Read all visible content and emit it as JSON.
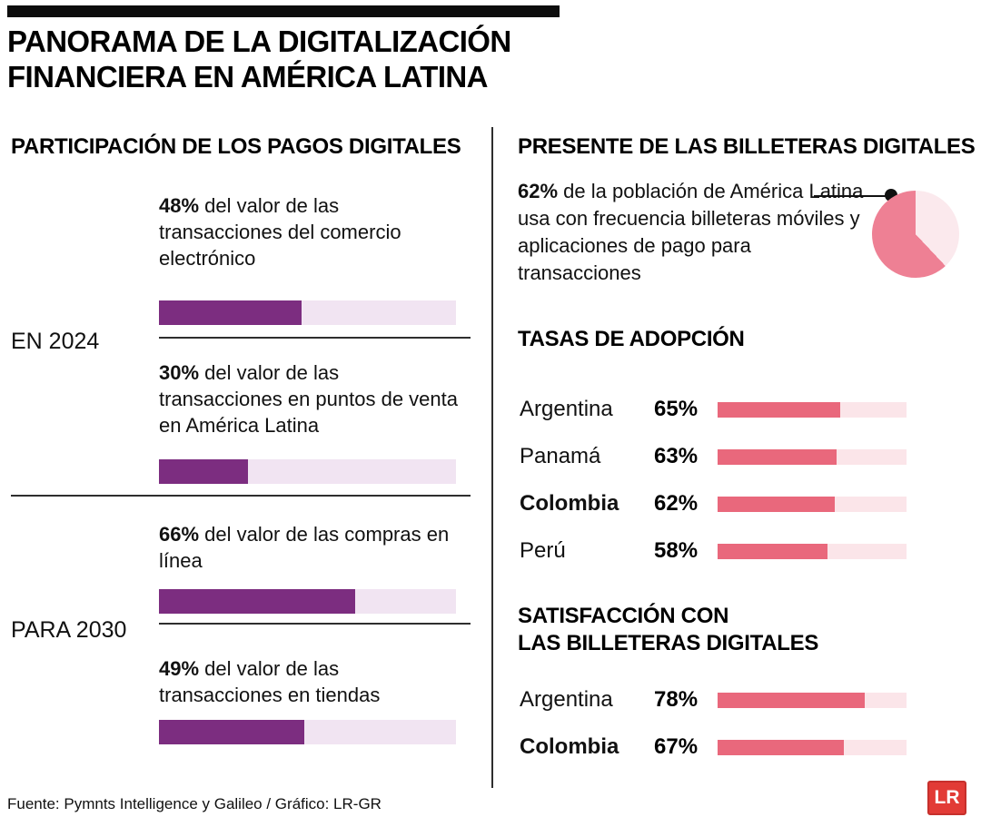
{
  "title": {
    "line1": "PANORAMA DE LA DIGITALIZACIÓN",
    "line2": "FINANCIERA EN AMÉRICA LATINA"
  },
  "colors": {
    "purple": "#7c2d80",
    "purple_track": "#f1e4f2",
    "pink": "#e9687c",
    "pink_track": "#fbe5e9",
    "pie": "#ee8094",
    "pie_light": "#fbe9ed",
    "logo_red": "#e23b36",
    "ink": "#111111"
  },
  "left": {
    "header": "PARTICIPACIÓN DE LOS PAGOS DIGITALES",
    "groups": [
      {
        "label": "EN 2024",
        "items": [
          {
            "pct": "48%",
            "value": 48,
            "text": "del valor de las transacciones del comercio electrónico"
          },
          {
            "pct": "30%",
            "value": 30,
            "text": "del valor de las transacciones en puntos de venta en América Latina"
          }
        ]
      },
      {
        "label": "PARA 2030",
        "items": [
          {
            "pct": "66%",
            "value": 66,
            "text": "del valor de las compras en línea"
          },
          {
            "pct": "49%",
            "value": 49,
            "text": "del valor de las transacciones en tiendas"
          }
        ]
      }
    ]
  },
  "right": {
    "header": "PRESENTE DE LAS BILLETERAS DIGITALES",
    "pie": {
      "pct": "62%",
      "value": 62,
      "text": "de la población de América Latina usa con frecuencia billeteras móviles y aplicaciones de pago para transacciones"
    },
    "adoption": {
      "header": "TASAS DE ADOPCIÓN",
      "rows": [
        {
          "country": "Argentina",
          "pct": "65%",
          "value": 65
        },
        {
          "country": "Panamá",
          "pct": "63%",
          "value": 63
        },
        {
          "country": "Colombia",
          "pct": "62%",
          "value": 62
        },
        {
          "country": "Perú",
          "pct": "58%",
          "value": 58
        }
      ]
    },
    "satisfaction": {
      "header_line1": "SATISFACCIÓN CON",
      "header_line2": "LAS BILLETERAS DIGITALES",
      "rows": [
        {
          "country": "Argentina",
          "pct": "78%",
          "value": 78
        },
        {
          "country": "Colombia",
          "pct": "67%",
          "value": 67
        }
      ]
    }
  },
  "footer": {
    "source": "Fuente: Pymnts Intelligence y Galileo / Gráfico: LR-GR",
    "logo": "LR"
  },
  "chart_data": [
    {
      "type": "bar",
      "title": "PARTICIPACIÓN DE LOS PAGOS DIGITALES",
      "categories": [
        "EN 2024 — del valor de las transacciones del comercio electrónico",
        "EN 2024 — del valor de las transacciones en puntos de venta en América Latina",
        "PARA 2030 — del valor de las compras en línea",
        "PARA 2030 — del valor de las transacciones en tiendas"
      ],
      "values": [
        48,
        30,
        66,
        49
      ],
      "unit": "%",
      "xlim": [
        0,
        100
      ],
      "orientation": "horizontal",
      "bar_color": "#7c2d80",
      "track_color": "#f1e4f2"
    },
    {
      "type": "pie",
      "title": "PRESENTE DE LAS BILLETERAS DIGITALES",
      "slices": [
        {
          "label": "Usa con frecuencia billeteras móviles y aplicaciones de pago",
          "value": 62,
          "color": "#ee8094"
        },
        {
          "label": "Resto",
          "value": 38,
          "color": "#fbe9ed"
        }
      ],
      "annotation": "62% de la población de América Latina usa con frecuencia billeteras móviles y aplicaciones de pago para transacciones"
    },
    {
      "type": "bar",
      "title": "TASAS DE ADOPCIÓN",
      "categories": [
        "Argentina",
        "Panamá",
        "Colombia",
        "Perú"
      ],
      "values": [
        65,
        63,
        62,
        58
      ],
      "unit": "%",
      "xlim": [
        0,
        100
      ],
      "orientation": "horizontal",
      "bar_color": "#e9687c",
      "track_color": "#fbe5e9"
    },
    {
      "type": "bar",
      "title": "SATISFACCIÓN CON LAS BILLETERAS DIGITALES",
      "categories": [
        "Argentina",
        "Colombia"
      ],
      "values": [
        78,
        67
      ],
      "unit": "%",
      "xlim": [
        0,
        100
      ],
      "orientation": "horizontal",
      "bar_color": "#e9687c",
      "track_color": "#fbe5e9"
    }
  ]
}
